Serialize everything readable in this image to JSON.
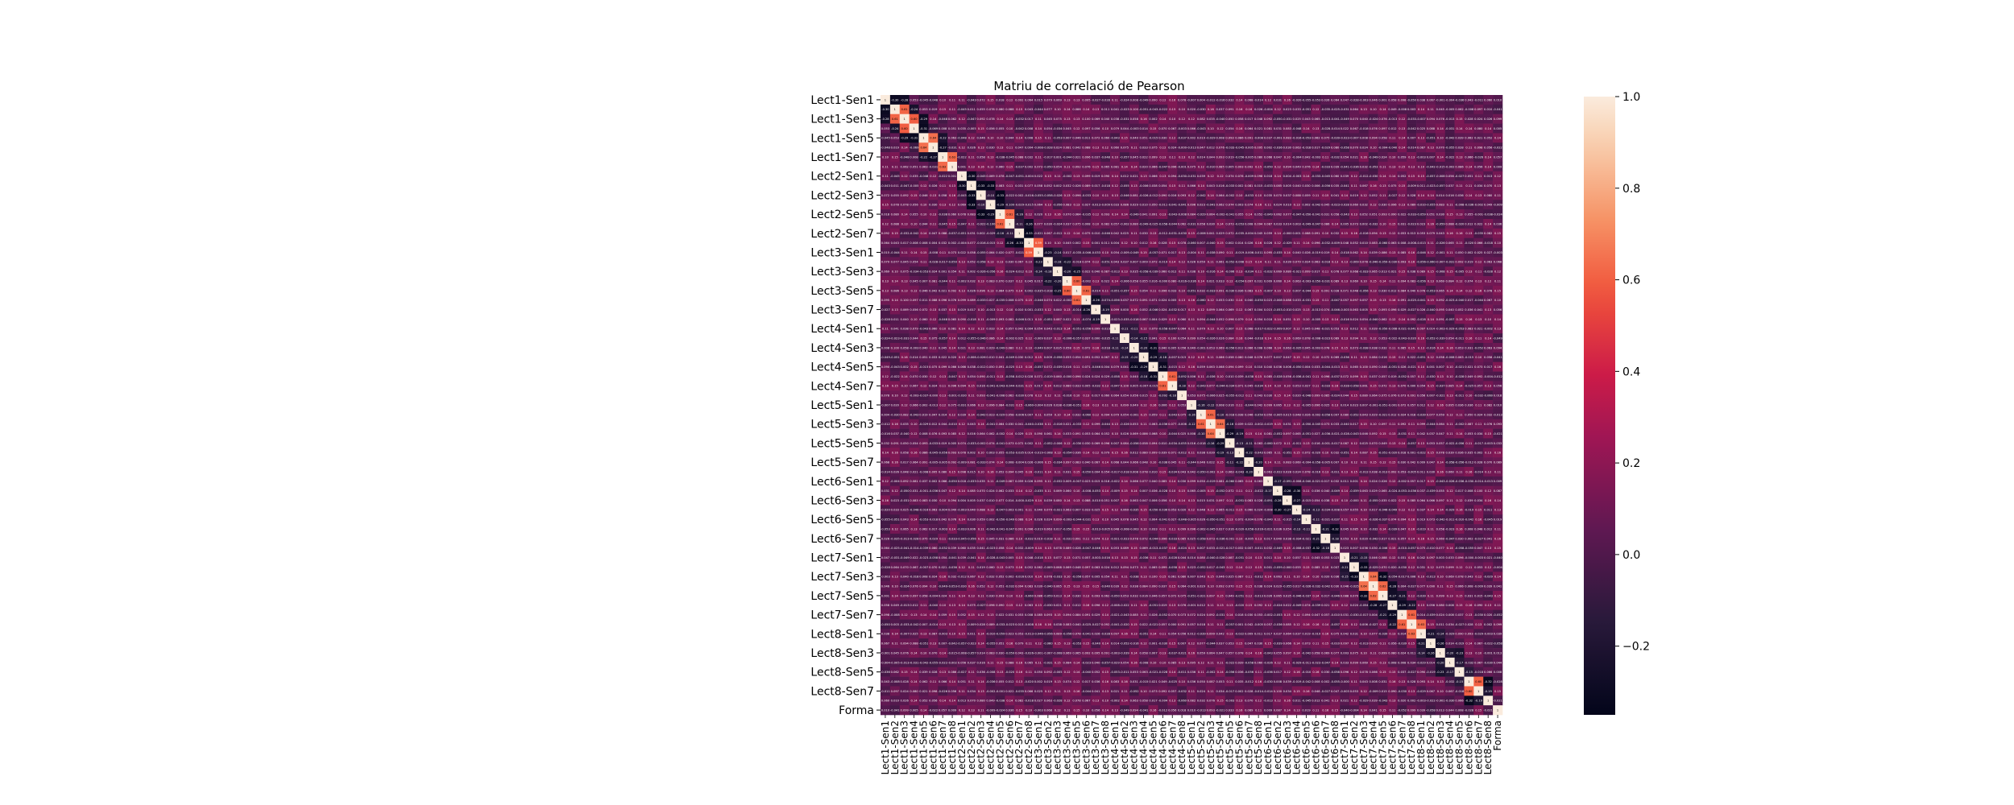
{
  "chart_data": {
    "type": "heatmap",
    "title": "Matriu de correlació de Pearson",
    "labels": [
      "Lect1-Sen1",
      "Lect1-Sen2",
      "Lect1-Sen3",
      "Lect1-Sen4",
      "Lect1-Sen5",
      "Lect1-Sen6",
      "Lect1-Sen7",
      "Lect1-Sen8",
      "Lect2-Sen1",
      "Lect2-Sen2",
      "Lect2-Sen3",
      "Lect2-Sen4",
      "Lect2-Sen5",
      "Lect2-Sen6",
      "Lect2-Sen7",
      "Lect2-Sen8",
      "Lect3-Sen1",
      "Lect3-Sen2",
      "Lect3-Sen3",
      "Lect3-Sen4",
      "Lect3-Sen5",
      "Lect3-Sen6",
      "Lect3-Sen7",
      "Lect3-Sen8",
      "Lect4-Sen1",
      "Lect4-Sen2",
      "Lect4-Sen3",
      "Lect4-Sen4",
      "Lect4-Sen5",
      "Lect4-Sen6",
      "Lect4-Sen7",
      "Lect4-Sen8",
      "Lect5-Sen1",
      "Lect5-Sen2",
      "Lect5-Sen3",
      "Lect5-Sen4",
      "Lect5-Sen5",
      "Lect5-Sen6",
      "Lect5-Sen7",
      "Lect5-Sen8",
      "Lect6-Sen1",
      "Lect6-Sen2",
      "Lect6-Sen3",
      "Lect6-Sen4",
      "Lect6-Sen5",
      "Lect6-Sen6",
      "Lect6-Sen7",
      "Lect6-Sen8",
      "Lect7-Sen1",
      "Lect7-Sen2",
      "Lect7-Sen3",
      "Lect7-Sen4",
      "Lect7-Sen5",
      "Lect7-Sen6",
      "Lect7-Sen7",
      "Lect7-Sen8",
      "Lect8-Sen1",
      "Lect8-Sen2",
      "Lect8-Sen3",
      "Lect8-Sen4",
      "Lect8-Sen5",
      "Lect8-Sen6",
      "Lect8-Sen7",
      "Lect8-Sen8",
      "Forma"
    ],
    "y_tick_labels_shown": [
      "Lect1-Sen1",
      "Lect1-Sen3",
      "Lect1-Sen5",
      "Lect1-Sen7",
      "Lect2-Sen1",
      "Lect2-Sen3",
      "Lect2-Sen5",
      "Lect2-Sen7",
      "Lect3-Sen1",
      "Lect3-Sen3",
      "Lect3-Sen5",
      "Lect3-Sen7",
      "Lect4-Sen1",
      "Lect4-Sen3",
      "Lect4-Sen5",
      "Lect4-Sen7",
      "Lect5-Sen1",
      "Lect5-Sen3",
      "Lect5-Sen5",
      "Lect5-Sen7",
      "Lect6-Sen1",
      "Lect6-Sen3",
      "Lect6-Sen5",
      "Lect6-Sen7",
      "Lect7-Sen1",
      "Lect7-Sen3",
      "Lect7-Sen5",
      "Lect7-Sen7",
      "Lect8-Sen1",
      "Lect8-Sen3",
      "Lect8-Sen5",
      "Lect8-Sen7",
      "Forma"
    ],
    "diagonal_value": 1,
    "off_diagonal_typical": 0.05,
    "value_range": [
      -0.35,
      1.0
    ],
    "colorbar": {
      "colormap": "rocket",
      "min": -0.35,
      "max": 1.0,
      "ticks": [
        1.0,
        0.8,
        0.6,
        0.4,
        0.2,
        0.0,
        -0.2
      ],
      "tick_labels": [
        "1.0",
        "0.8",
        "0.6",
        "0.4",
        "0.2",
        "0.0",
        "−0.2"
      ]
    },
    "annotated_cells": true,
    "grid": false
  }
}
